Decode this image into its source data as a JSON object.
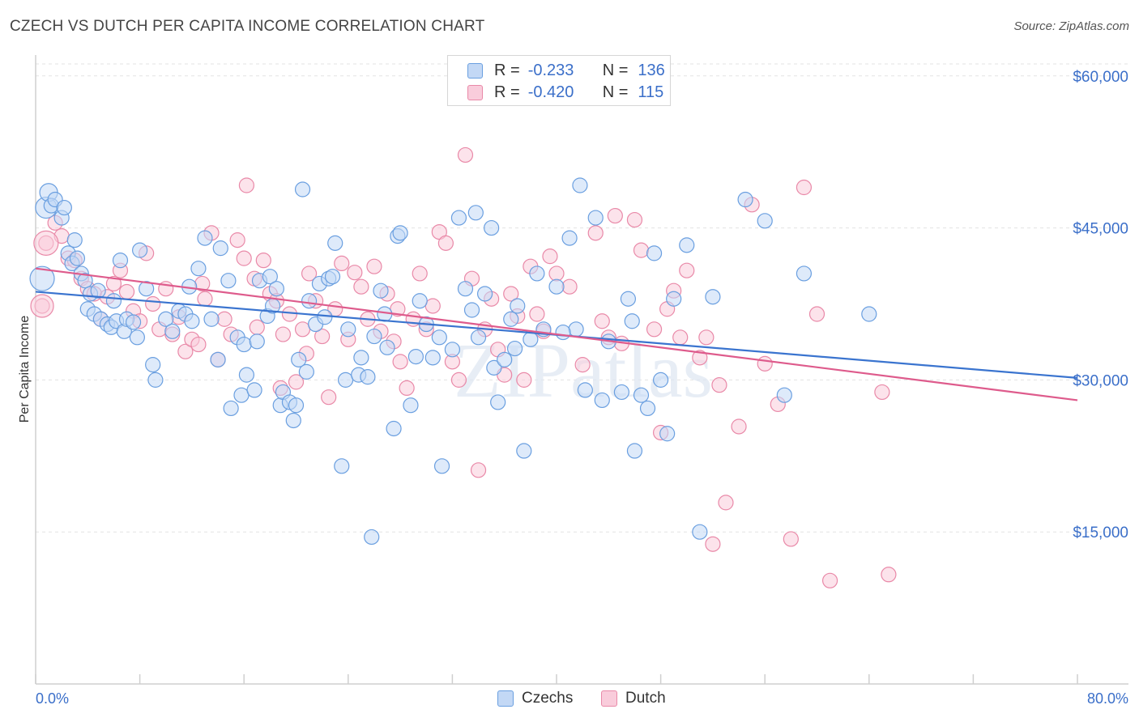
{
  "title": "CZECH VS DUTCH PER CAPITA INCOME CORRELATION CHART",
  "source": "Source: ZipAtlas.com",
  "legend": {
    "r_label": "R =",
    "n_label": "N =",
    "rows": [
      {
        "name": "Czechs",
        "r": "-0.233",
        "n": "136",
        "color": "#6a9fe0",
        "fill": "#c3d8f5"
      },
      {
        "name": "Dutch",
        "r": "-0.420",
        "n": "115",
        "color": "#e989a8",
        "fill": "#f9ccdb"
      }
    ]
  },
  "chart_data": {
    "type": "scatter",
    "title": "CZECH VS DUTCH PER CAPITA INCOME CORRELATION CHART",
    "xlabel": "",
    "ylabel": "Per Capita Income",
    "xlim": [
      0,
      80
    ],
    "ylim": [
      0,
      61500
    ],
    "x_tick_labels": [
      "0.0%",
      "80.0%"
    ],
    "y_ticks": [
      15000,
      30000,
      45000,
      60000
    ],
    "y_tick_labels": [
      "$15,000",
      "$30,000",
      "$45,000",
      "$60,000"
    ],
    "grid": true,
    "watermark": "ZIPatlas",
    "series": [
      {
        "name": "Czechs",
        "color": "#3a74cf",
        "marker_fill": "#c3d8f5",
        "marker_stroke": "#6a9fe0",
        "trend": {
          "x": [
            0,
            80
          ],
          "y": [
            38700,
            30200
          ]
        },
        "points": [
          [
            0.5,
            40000
          ],
          [
            0.8,
            47000
          ],
          [
            1.0,
            48500
          ],
          [
            1.2,
            47200
          ],
          [
            1.5,
            47800
          ],
          [
            2.0,
            46000
          ],
          [
            2.2,
            47000
          ],
          [
            2.5,
            42500
          ],
          [
            2.8,
            41500
          ],
          [
            3.0,
            43800
          ],
          [
            3.2,
            42000
          ],
          [
            3.5,
            40500
          ],
          [
            3.8,
            39800
          ],
          [
            4.0,
            37000
          ],
          [
            4.2,
            38500
          ],
          [
            4.5,
            36500
          ],
          [
            4.8,
            38800
          ],
          [
            5.0,
            36000
          ],
          [
            5.5,
            35500
          ],
          [
            5.8,
            35200
          ],
          [
            6.0,
            37800
          ],
          [
            6.2,
            35800
          ],
          [
            6.5,
            41800
          ],
          [
            6.8,
            34800
          ],
          [
            7.0,
            36000
          ],
          [
            7.5,
            35700
          ],
          [
            7.8,
            34200
          ],
          [
            8.0,
            42800
          ],
          [
            8.5,
            39000
          ],
          [
            9.0,
            31500
          ],
          [
            9.2,
            30000
          ],
          [
            10.0,
            36000
          ],
          [
            10.5,
            34800
          ],
          [
            11.0,
            36800
          ],
          [
            11.5,
            36500
          ],
          [
            11.8,
            39200
          ],
          [
            12.0,
            35800
          ],
          [
            12.5,
            41000
          ],
          [
            13.0,
            44000
          ],
          [
            13.5,
            36000
          ],
          [
            14.0,
            32000
          ],
          [
            14.2,
            43000
          ],
          [
            14.8,
            39800
          ],
          [
            15.0,
            27200
          ],
          [
            15.5,
            34200
          ],
          [
            15.8,
            28500
          ],
          [
            16.0,
            33500
          ],
          [
            16.2,
            30500
          ],
          [
            16.8,
            29000
          ],
          [
            17.0,
            33800
          ],
          [
            17.2,
            39800
          ],
          [
            17.8,
            36300
          ],
          [
            18.0,
            40200
          ],
          [
            18.5,
            39000
          ],
          [
            18.8,
            27500
          ],
          [
            19.0,
            28800
          ],
          [
            19.5,
            27800
          ],
          [
            19.8,
            26000
          ],
          [
            20.0,
            27500
          ],
          [
            20.2,
            32000
          ],
          [
            20.5,
            48800
          ],
          [
            20.8,
            30800
          ],
          [
            21.0,
            37800
          ],
          [
            21.5,
            35500
          ],
          [
            21.8,
            39500
          ],
          [
            22.2,
            36200
          ],
          [
            22.5,
            40000
          ],
          [
            23.0,
            43500
          ],
          [
            23.8,
            30000
          ],
          [
            23.5,
            21500
          ],
          [
            24.0,
            35000
          ],
          [
            24.8,
            30500
          ],
          [
            25.0,
            32200
          ],
          [
            25.5,
            30300
          ],
          [
            25.8,
            14500
          ],
          [
            26.5,
            38800
          ],
          [
            26.8,
            36500
          ],
          [
            27.0,
            33200
          ],
          [
            27.5,
            25200
          ],
          [
            27.8,
            44200
          ],
          [
            28.0,
            44500
          ],
          [
            28.8,
            27500
          ],
          [
            29.2,
            32300
          ],
          [
            29.5,
            37800
          ],
          [
            30.0,
            35500
          ],
          [
            30.5,
            32200
          ],
          [
            31.0,
            34200
          ],
          [
            31.2,
            21500
          ],
          [
            32.0,
            33000
          ],
          [
            32.5,
            46000
          ],
          [
            33.0,
            39000
          ],
          [
            33.8,
            46500
          ],
          [
            34.0,
            34200
          ],
          [
            34.5,
            38500
          ],
          [
            35.0,
            45000
          ],
          [
            35.2,
            31200
          ],
          [
            35.5,
            27800
          ],
          [
            36.0,
            32000
          ],
          [
            36.5,
            36000
          ],
          [
            37.0,
            37300
          ],
          [
            37.5,
            23000
          ],
          [
            38.0,
            34000
          ],
          [
            38.5,
            40500
          ],
          [
            39.0,
            35000
          ],
          [
            40.0,
            39200
          ],
          [
            41.0,
            44000
          ],
          [
            41.5,
            35000
          ],
          [
            41.8,
            49200
          ],
          [
            42.2,
            29000
          ],
          [
            43.0,
            46000
          ],
          [
            43.5,
            28000
          ],
          [
            44.0,
            33800
          ],
          [
            45.0,
            28800
          ],
          [
            45.5,
            38000
          ],
          [
            45.8,
            35800
          ],
          [
            46.0,
            23000
          ],
          [
            46.5,
            28500
          ],
          [
            47.0,
            27200
          ],
          [
            47.5,
            42500
          ],
          [
            48.0,
            30000
          ],
          [
            48.5,
            24700
          ],
          [
            49.0,
            38000
          ],
          [
            50.0,
            43300
          ],
          [
            51.0,
            15000
          ],
          [
            52.0,
            38200
          ],
          [
            54.5,
            47800
          ],
          [
            56.0,
            45700
          ],
          [
            57.5,
            28500
          ],
          [
            59.0,
            40500
          ],
          [
            64.0,
            36500
          ],
          [
            26.0,
            34300
          ],
          [
            22.8,
            40200
          ],
          [
            33.5,
            36900
          ],
          [
            40.5,
            34700
          ],
          [
            18.2,
            37300
          ],
          [
            36.8,
            33100
          ]
        ],
        "sizes": [
          [
            0.5,
            40000,
            15
          ],
          [
            0.8,
            47000,
            13
          ],
          [
            1.0,
            48500,
            11
          ]
        ]
      },
      {
        "name": "Dutch",
        "color": "#de5b8c",
        "marker_fill": "#f9ccdb",
        "marker_stroke": "#e989a8",
        "trend": {
          "x": [
            0,
            80
          ],
          "y": [
            41000,
            28000
          ]
        },
        "points": [
          [
            0.5,
            37300
          ],
          [
            0.8,
            43500
          ],
          [
            1.5,
            45500
          ],
          [
            2.0,
            44200
          ],
          [
            2.5,
            42000
          ],
          [
            3.0,
            41800
          ],
          [
            3.5,
            40000
          ],
          [
            4.0,
            39000
          ],
          [
            4.5,
            38500
          ],
          [
            5.0,
            36000
          ],
          [
            5.5,
            38200
          ],
          [
            6.0,
            39500
          ],
          [
            6.5,
            40800
          ],
          [
            7.0,
            38700
          ],
          [
            7.5,
            36800
          ],
          [
            8.0,
            35800
          ],
          [
            8.5,
            42500
          ],
          [
            9.0,
            37500
          ],
          [
            9.5,
            35000
          ],
          [
            10.0,
            39000
          ],
          [
            10.5,
            34500
          ],
          [
            11.0,
            36200
          ],
          [
            11.5,
            32800
          ],
          [
            12.0,
            34000
          ],
          [
            12.5,
            33500
          ],
          [
            13.0,
            38000
          ],
          [
            13.5,
            44500
          ],
          [
            14.0,
            32000
          ],
          [
            14.5,
            36000
          ],
          [
            15.0,
            34500
          ],
          [
            15.5,
            43800
          ],
          [
            16.0,
            42000
          ],
          [
            16.2,
            49200
          ],
          [
            16.8,
            40000
          ],
          [
            17.0,
            35200
          ],
          [
            17.5,
            41800
          ],
          [
            18.0,
            38500
          ],
          [
            18.5,
            37800
          ],
          [
            18.8,
            29200
          ],
          [
            19.0,
            34500
          ],
          [
            19.5,
            36500
          ],
          [
            20.0,
            29800
          ],
          [
            20.5,
            35000
          ],
          [
            21.0,
            40500
          ],
          [
            21.5,
            37800
          ],
          [
            22.0,
            34300
          ],
          [
            22.5,
            28300
          ],
          [
            23.0,
            37000
          ],
          [
            23.5,
            41500
          ],
          [
            24.0,
            34000
          ],
          [
            24.5,
            40600
          ],
          [
            25.0,
            39200
          ],
          [
            25.5,
            36000
          ],
          [
            26.0,
            41200
          ],
          [
            26.5,
            34800
          ],
          [
            27.0,
            38500
          ],
          [
            27.5,
            33800
          ],
          [
            28.0,
            31800
          ],
          [
            28.5,
            29200
          ],
          [
            29.0,
            36000
          ],
          [
            29.5,
            40500
          ],
          [
            30.0,
            35000
          ],
          [
            30.5,
            37300
          ],
          [
            31.0,
            44600
          ],
          [
            31.5,
            43500
          ],
          [
            32.0,
            31800
          ],
          [
            32.5,
            30000
          ],
          [
            33.0,
            52200
          ],
          [
            33.5,
            40000
          ],
          [
            34.0,
            21100
          ],
          [
            34.5,
            35000
          ],
          [
            35.0,
            38000
          ],
          [
            35.5,
            33000
          ],
          [
            36.0,
            30500
          ],
          [
            36.5,
            38500
          ],
          [
            37.0,
            36300
          ],
          [
            37.5,
            30000
          ],
          [
            38.0,
            41200
          ],
          [
            38.5,
            36500
          ],
          [
            39.0,
            34800
          ],
          [
            39.5,
            42200
          ],
          [
            40.0,
            40500
          ],
          [
            41.0,
            39200
          ],
          [
            42.0,
            31500
          ],
          [
            43.0,
            44500
          ],
          [
            43.5,
            35800
          ],
          [
            44.0,
            34200
          ],
          [
            44.5,
            46200
          ],
          [
            45.0,
            33600
          ],
          [
            46.0,
            45800
          ],
          [
            46.5,
            42800
          ],
          [
            47.5,
            35000
          ],
          [
            48.0,
            24800
          ],
          [
            49.0,
            38800
          ],
          [
            49.5,
            34200
          ],
          [
            50.0,
            40800
          ],
          [
            51.0,
            32200
          ],
          [
            51.5,
            34200
          ],
          [
            52.0,
            13800
          ],
          [
            52.5,
            29500
          ],
          [
            53.0,
            17900
          ],
          [
            54.0,
            25400
          ],
          [
            55.0,
            47300
          ],
          [
            56.0,
            31600
          ],
          [
            57.0,
            27600
          ],
          [
            58.0,
            14300
          ],
          [
            59.0,
            49000
          ],
          [
            60.0,
            36500
          ],
          [
            61.0,
            10200
          ],
          [
            65.0,
            28800
          ],
          [
            65.5,
            10800
          ],
          [
            48.5,
            37000
          ],
          [
            27.8,
            37000
          ],
          [
            12.8,
            39500
          ],
          [
            20.8,
            32600
          ]
        ]
      }
    ]
  },
  "bottom_legend": [
    {
      "label": "Czechs"
    },
    {
      "label": "Dutch"
    }
  ]
}
